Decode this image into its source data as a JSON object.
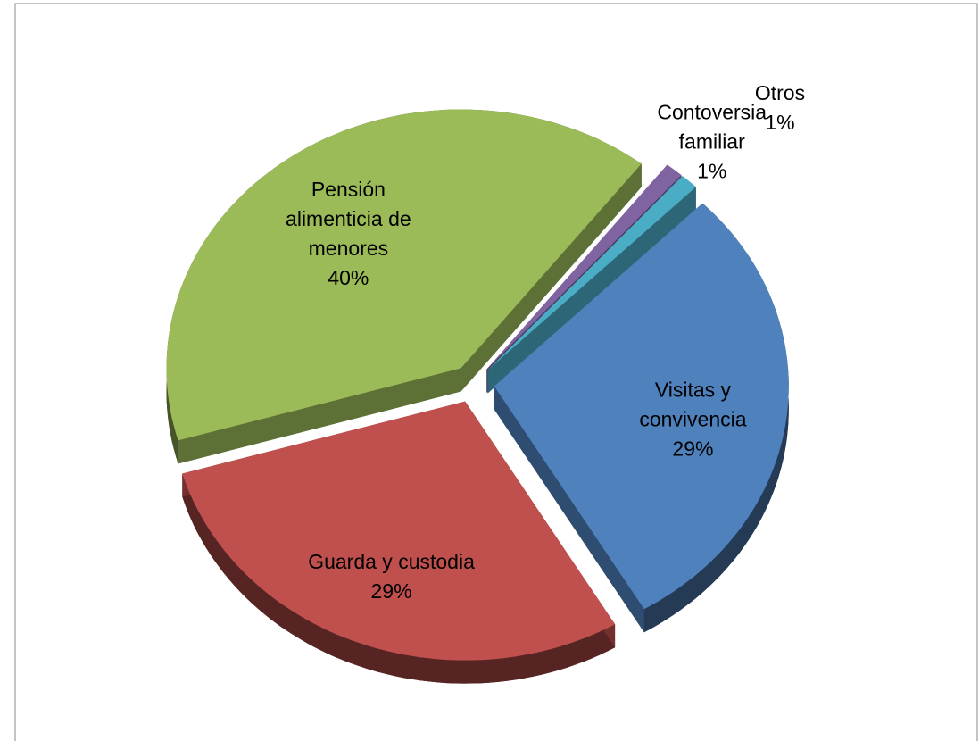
{
  "chart_data": {
    "type": "pie",
    "categories": [
      "Visitas y convivencia",
      "Guarda y custodia",
      "Pensión alimenticia de menores",
      "Contoversia familiar",
      "Otros"
    ],
    "values": [
      29,
      29,
      40,
      1,
      1
    ],
    "value_labels": [
      "29%",
      "29%",
      "40%",
      "1%",
      "1%"
    ],
    "colors": [
      "#4f81bd",
      "#c0504d",
      "#9bbb59",
      "#8064a2",
      "#4bacc6"
    ]
  }
}
